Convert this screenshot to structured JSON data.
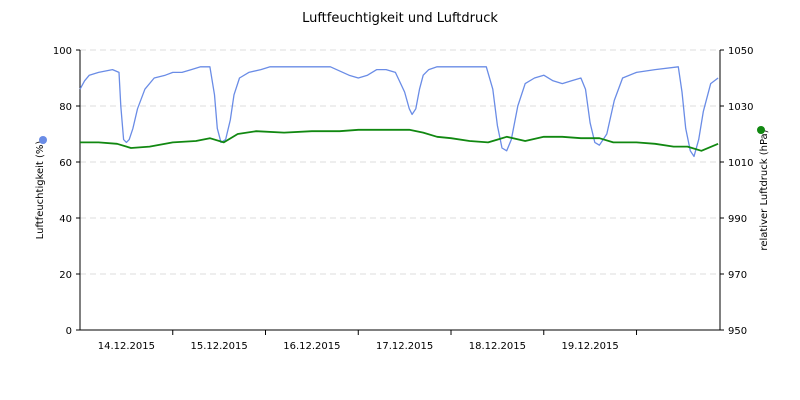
{
  "colors": {
    "humidity": "#6a8ce6",
    "pressure": "#118811",
    "grid": "#dddddd",
    "axis": "#000000"
  },
  "chart_data": {
    "type": "line",
    "title": "Luftfeuchtigkeit und Luftdruck",
    "y_left": {
      "label": "Luftfeuchtigkeit (%)",
      "range": [
        0,
        100
      ],
      "ticks": [
        0,
        20,
        40,
        60,
        80,
        100
      ],
      "tick_labels": [
        "0",
        "20",
        "40",
        "60",
        "80",
        "100"
      ]
    },
    "y_right": {
      "label": "relativer Luftdruck (hPa)",
      "range": [
        950,
        1050
      ],
      "ticks": [
        950,
        970,
        990,
        1010,
        1030,
        1050
      ],
      "tick_labels": [
        "950",
        "970",
        "990",
        "1010",
        "1030",
        "1050"
      ]
    },
    "x_axis": {
      "range": [
        0,
        6.9
      ],
      "ticks": [
        1,
        2,
        3,
        4,
        5,
        6,
        7
      ],
      "tick_labels": [
        "14.12.2015",
        "15.12.2015",
        "16.12.2015",
        "17.12.2015",
        "18.12.2015",
        "19.12.2015",
        ""
      ],
      "unit_note": "days"
    },
    "grid": true,
    "series": [
      {
        "key": "humidity",
        "axis": "left",
        "x": [
          0.0,
          0.05,
          0.1,
          0.2,
          0.35,
          0.42,
          0.44,
          0.47,
          0.5,
          0.53,
          0.57,
          0.62,
          0.7,
          0.8,
          0.92,
          1.0,
          1.1,
          1.2,
          1.3,
          1.4,
          1.45,
          1.48,
          1.52,
          1.57,
          1.62,
          1.66,
          1.72,
          1.82,
          1.95,
          2.05,
          2.15,
          2.3,
          2.5,
          2.7,
          2.9,
          3.0,
          3.1,
          3.2,
          3.3,
          3.4,
          3.5,
          3.55,
          3.58,
          3.62,
          3.66,
          3.7,
          3.76,
          3.85,
          4.0,
          4.2,
          4.38,
          4.45,
          4.5,
          4.55,
          4.6,
          4.65,
          4.72,
          4.8,
          4.9,
          5.0,
          5.1,
          5.2,
          5.3,
          5.4,
          5.45,
          5.5,
          5.55,
          5.6,
          5.68,
          5.76,
          5.85,
          6.0,
          6.2,
          6.45,
          6.49,
          6.53,
          6.58,
          6.62,
          6.67,
          6.72,
          6.8,
          6.88
        ],
        "y": [
          86,
          89,
          91,
          92,
          93,
          92,
          80,
          68,
          67,
          68,
          72,
          79,
          86,
          90,
          91,
          92,
          92,
          93,
          94,
          94,
          84,
          72,
          67,
          68,
          75,
          84,
          90,
          92,
          93,
          94,
          94,
          94,
          94,
          94,
          91,
          90,
          91,
          93,
          93,
          92,
          85,
          79,
          77,
          79,
          86,
          91,
          93,
          94,
          94,
          94,
          94,
          86,
          73,
          65,
          64,
          68,
          80,
          88,
          90,
          91,
          89,
          88,
          89,
          90,
          86,
          74,
          67,
          66,
          70,
          82,
          90,
          92,
          93,
          94,
          85,
          72,
          64,
          62,
          68,
          78,
          88,
          90
        ]
      },
      {
        "key": "pressure",
        "axis": "right",
        "x": [
          0.0,
          0.2,
          0.4,
          0.55,
          0.75,
          1.0,
          1.25,
          1.4,
          1.55,
          1.7,
          1.9,
          2.2,
          2.5,
          2.8,
          3.0,
          3.2,
          3.4,
          3.55,
          3.7,
          3.85,
          4.0,
          4.2,
          4.4,
          4.5,
          4.6,
          4.8,
          5.0,
          5.2,
          5.4,
          5.6,
          5.75,
          6.0,
          6.2,
          6.4,
          6.55,
          6.7,
          6.88
        ],
        "y": [
          1017,
          1017,
          1016.5,
          1015,
          1015.5,
          1017,
          1017.5,
          1018.5,
          1017,
          1020,
          1021,
          1020.5,
          1021,
          1021,
          1021.5,
          1021.5,
          1021.5,
          1021.5,
          1020.5,
          1019,
          1018.5,
          1017.5,
          1017,
          1018,
          1019,
          1017.5,
          1019,
          1019,
          1018.5,
          1018.5,
          1017,
          1017,
          1016.5,
          1015.5,
          1015.5,
          1014,
          1016.5
        ]
      }
    ]
  }
}
